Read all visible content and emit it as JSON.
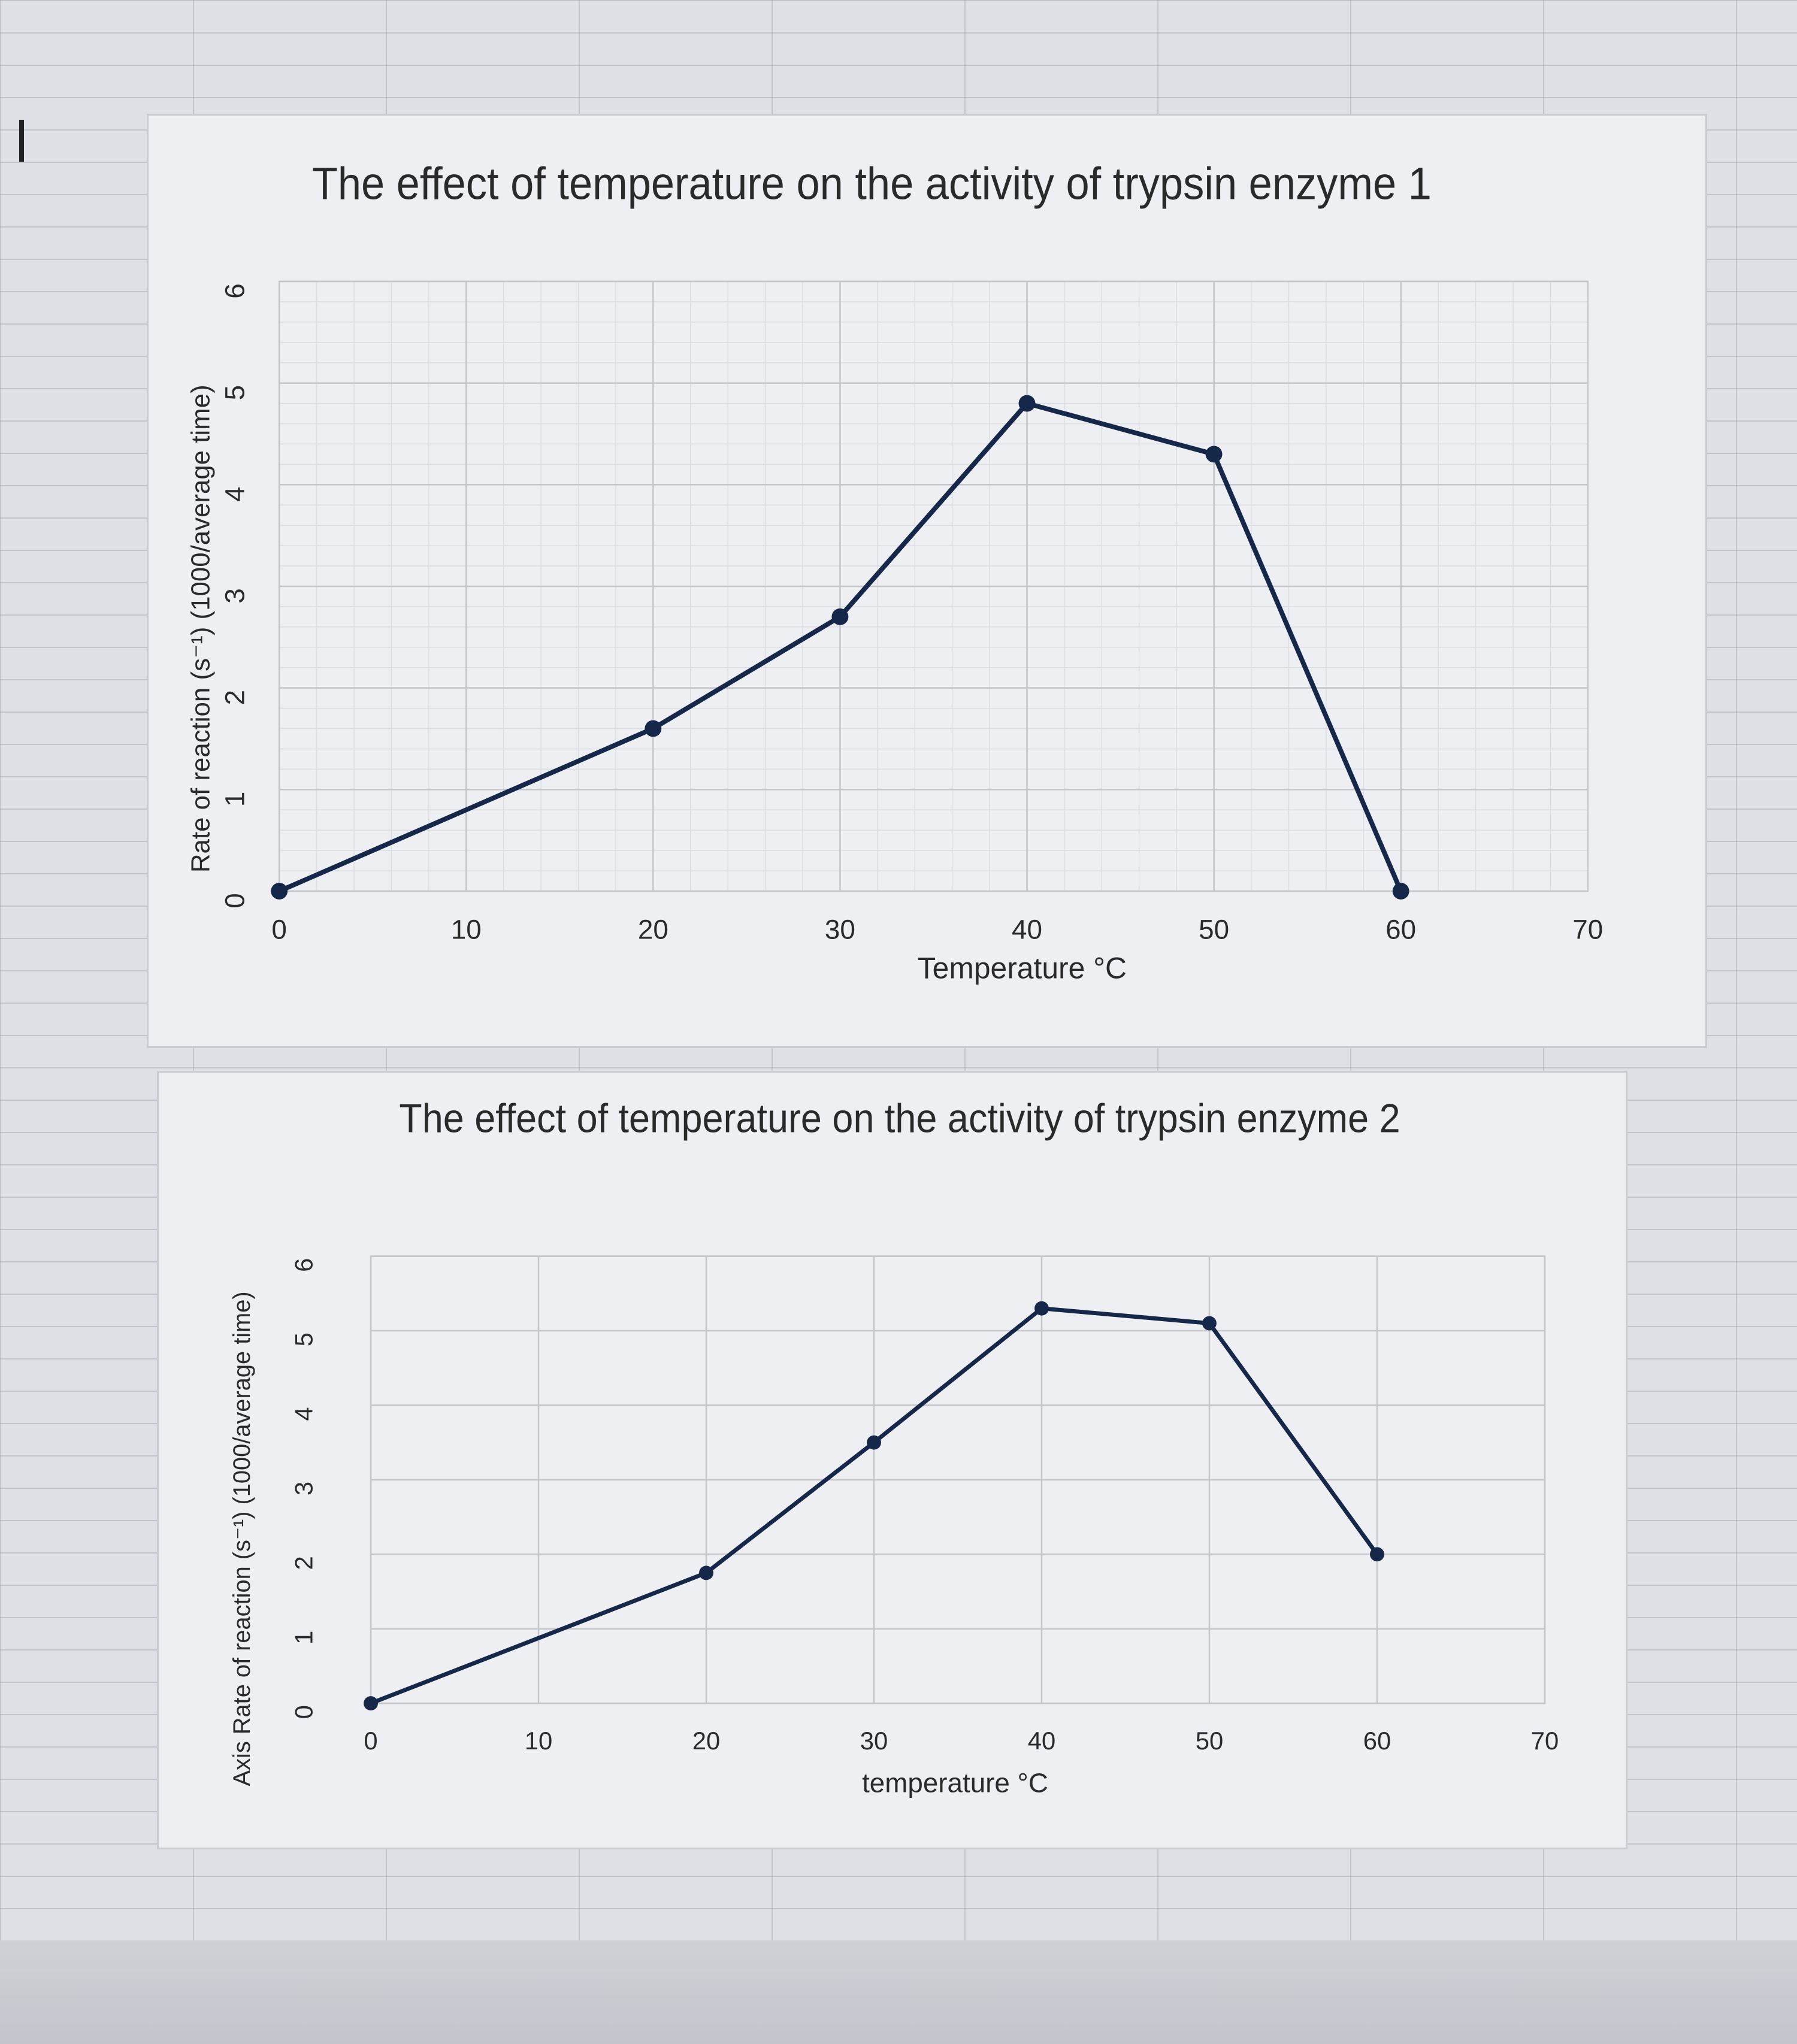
{
  "colors": {
    "line": "#16284a",
    "grid_major": "#c4c6cc",
    "grid_minor": "#dcdde2",
    "panel_background": "#eeeff3"
  },
  "chart_data": [
    {
      "type": "line",
      "title": "The effect of temperature on the activity of trypsin enzyme 1",
      "xlabel": "Temperature °C",
      "ylabel": "Rate of reaction (s⁻¹) (1000/average time)",
      "x_ticks": [
        "0",
        "10",
        "20",
        "30",
        "40",
        "50",
        "60",
        "70"
      ],
      "y_ticks": [
        "0",
        "1",
        "2",
        "3",
        "4",
        "5",
        "6"
      ],
      "xlim": [
        0,
        70
      ],
      "ylim": [
        0,
        6
      ],
      "grid": true,
      "minor_grid": true,
      "series": [
        {
          "x": [
            0,
            20,
            30,
            40,
            50,
            60
          ],
          "y": [
            0,
            1.6,
            2.7,
            4.8,
            4.3,
            0
          ]
        }
      ]
    },
    {
      "type": "line",
      "title": "The effect of temperature on the activity of trypsin enzyme 2",
      "xlabel": "temperature °C",
      "ylabel": "Axis Rate of reaction (s⁻¹) (1000/average time)",
      "x_ticks": [
        "0",
        "10",
        "20",
        "30",
        "40",
        "50",
        "60",
        "70"
      ],
      "y_ticks": [
        "0",
        "1",
        "2",
        "3",
        "4",
        "5",
        "6"
      ],
      "xlim": [
        0,
        70
      ],
      "ylim": [
        0,
        6
      ],
      "grid": true,
      "minor_grid": false,
      "series": [
        {
          "x": [
            0,
            20,
            30,
            40,
            50,
            60
          ],
          "y": [
            0,
            1.75,
            3.5,
            5.3,
            5.1,
            2
          ]
        }
      ]
    }
  ]
}
